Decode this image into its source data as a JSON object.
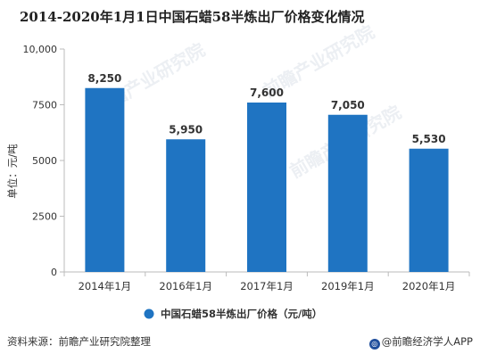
{
  "title": "2014-2020年1月1日中国石蜡58半炼出厂价格变化情况",
  "source": "资料来源：前瞻产业研究院整理",
  "brand": "@前瞻经济学人APP",
  "watermark": "前瞻产业研究院",
  "colors": {
    "bar": "#1f74c2",
    "axis": "#bbbbbb",
    "text": "#333333"
  },
  "chart_data": {
    "type": "bar",
    "categories": [
      "2014年1月",
      "2016年1月",
      "2017年1月",
      "2019年1月",
      "2020年1月"
    ],
    "series": [
      {
        "name": "中国石蜡58半炼出厂价格（元/吨）",
        "values": [
          8250,
          5950,
          7600,
          7050,
          5530
        ]
      }
    ],
    "data_labels": [
      "8,250",
      "5,950",
      "7,600",
      "7,050",
      "5,530"
    ],
    "yticks": [
      0,
      2500,
      5000,
      7500,
      10000
    ],
    "ytick_labels": [
      "0",
      "2500",
      "5000",
      "7500",
      "10,000"
    ],
    "ylim": [
      0,
      10000
    ],
    "ylabel": "单位：元/吨",
    "xlabel": "",
    "legend_position": "bottom",
    "grid": false
  }
}
